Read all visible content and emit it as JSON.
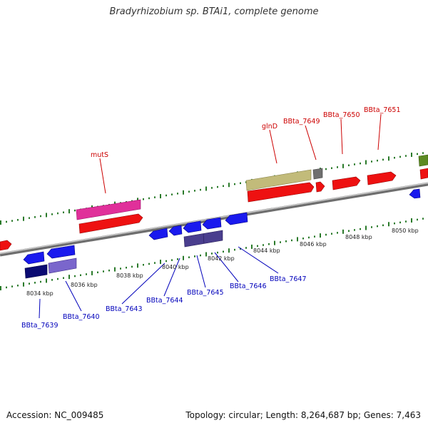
{
  "title": "Bradyrhizobium sp. BTAi1, complete genome",
  "footer": {
    "accession": "Accession: NC_009485",
    "stats": "Topology: circular; Length: 8,264,687 bp; Genes: 7,463"
  },
  "colors": {
    "backbone": "#8a8a8a",
    "ticks": "#2a7a2a",
    "forward_label": "#cc0000",
    "reverse_label": "#0000bb"
  },
  "scale_labels": [
    "8034 kbp",
    "8036 kbp",
    "8038 kbp",
    "8040 kbp",
    "8042 kbp",
    "8044 kbp",
    "8046 kbp",
    "8048 kbp",
    "8050 kbp"
  ],
  "forward_gene_labels": [
    "mutS",
    "glnD",
    "BBta_7649",
    "BBta_7650",
    "BBta_7651"
  ],
  "reverse_gene_labels": [
    "BBta_7639",
    "BBta_7640",
    "BBta_7643",
    "BBta_7644",
    "BBta_7645",
    "BBta_7646",
    "BBta_7647"
  ]
}
